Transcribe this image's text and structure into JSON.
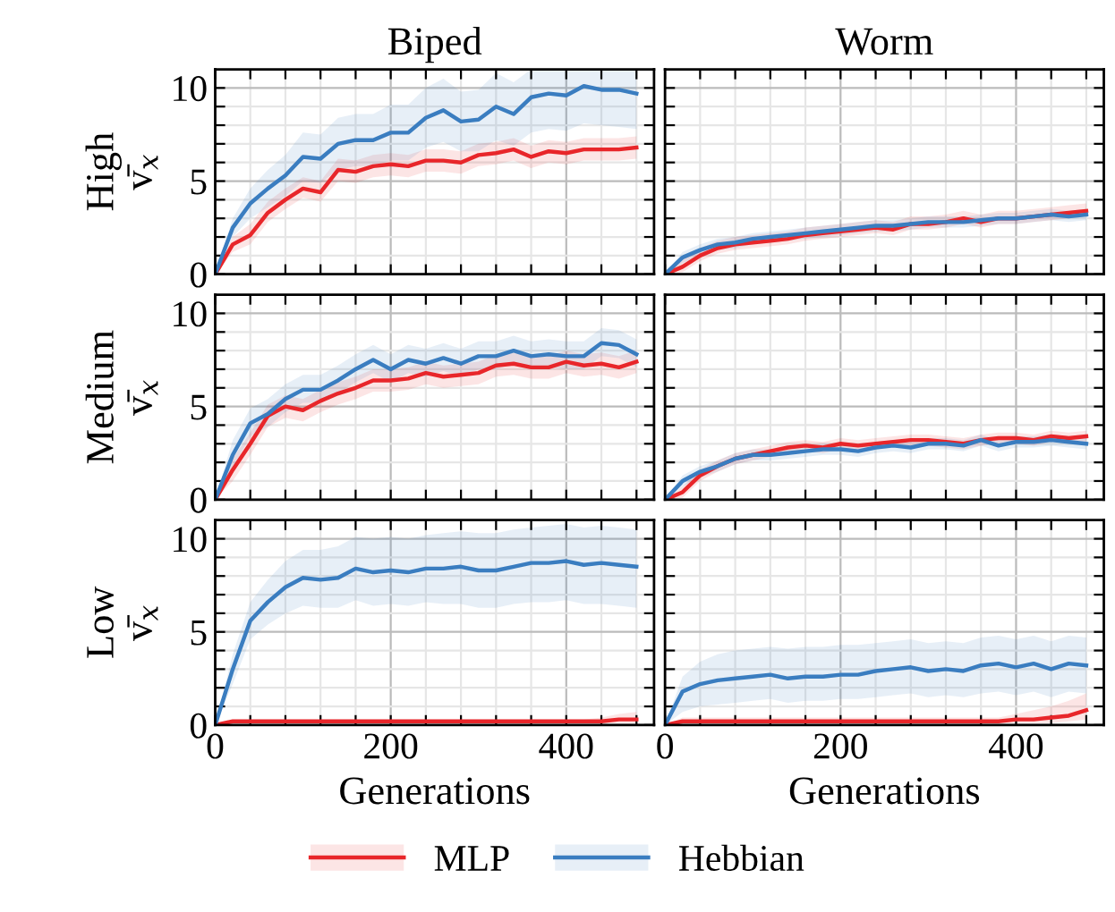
{
  "chart_data": [
    {
      "type": "line",
      "title": "Biped",
      "ylabel": "High\nv̄$_{x}$",
      "tick_labels": "y",
      "grid": true,
      "legend": "bottom",
      "xlim": [
        0,
        500
      ],
      "ylim": [
        0,
        11
      ],
      "xticks": [
        0,
        {
          "value": 40,
          "label": null
        },
        {
          "value": 80,
          "label": null
        },
        {
          "value": 120,
          "label": null
        },
        {
          "value": 160,
          "label": null
        },
        200,
        {
          "value": 240,
          "label": null
        },
        {
          "value": 280,
          "label": null
        },
        {
          "value": 320,
          "label": null
        },
        {
          "value": 360,
          "label": null
        },
        400,
        {
          "value": 440,
          "label": null
        },
        {
          "value": 480,
          "label": null
        }
      ],
      "yticks": [
        0,
        {
          "value": 1,
          "label": null
        },
        {
          "value": 2,
          "label": null
        },
        {
          "value": 3,
          "label": null
        },
        {
          "value": 4,
          "label": null
        },
        5,
        {
          "value": 6,
          "label": null
        },
        {
          "value": 7,
          "label": null
        },
        {
          "value": 8,
          "label": null
        },
        {
          "value": 9,
          "label": null
        },
        10
      ],
      "x": [
        0,
        20,
        40,
        60,
        80,
        100,
        120,
        140,
        160,
        180,
        200,
        220,
        240,
        260,
        280,
        300,
        320,
        340,
        360,
        380,
        400,
        420,
        440,
        460,
        480
      ],
      "series": [
        {
          "name": "MLP",
          "color": "#e8262a",
          "values": [
            0,
            1.6,
            2.1,
            3.3,
            4.0,
            4.6,
            4.4,
            5.6,
            5.5,
            5.8,
            5.9,
            5.8,
            6.1,
            6.1,
            6.0,
            6.4,
            6.5,
            6.7,
            6.3,
            6.6,
            6.5,
            6.7,
            6.7,
            6.7,
            6.8
          ],
          "lower": [
            0,
            1.2,
            1.6,
            2.8,
            3.5,
            4.1,
            3.9,
            5.0,
            4.9,
            5.2,
            5.3,
            5.2,
            5.5,
            5.5,
            5.4,
            5.8,
            5.9,
            6.1,
            5.7,
            6.0,
            5.9,
            6.1,
            6.1,
            6.1,
            6.2
          ],
          "upper": [
            0,
            2.0,
            2.7,
            3.9,
            4.6,
            5.2,
            5.0,
            6.2,
            6.1,
            6.4,
            6.5,
            6.4,
            6.7,
            6.7,
            6.6,
            7.0,
            7.1,
            7.3,
            6.9,
            7.2,
            7.1,
            7.3,
            7.3,
            7.3,
            7.4
          ]
        },
        {
          "name": "Hebbian",
          "color": "#3a7dc0",
          "values": [
            0,
            2.5,
            3.8,
            4.6,
            5.3,
            6.3,
            6.2,
            7.0,
            7.2,
            7.2,
            7.6,
            7.6,
            8.4,
            8.8,
            8.2,
            8.3,
            9.0,
            8.6,
            9.5,
            9.7,
            9.6,
            10.1,
            9.9,
            9.9,
            9.7
          ],
          "lower": [
            0,
            2.0,
            3.0,
            3.6,
            4.2,
            5.0,
            4.9,
            5.6,
            5.8,
            5.8,
            6.1,
            6.1,
            6.8,
            7.1,
            6.6,
            6.6,
            7.2,
            6.9,
            7.6,
            7.8,
            7.7,
            8.1,
            8.0,
            7.9,
            7.8
          ],
          "upper": [
            0,
            3.0,
            4.6,
            5.6,
            6.4,
            7.6,
            7.5,
            8.4,
            8.6,
            8.6,
            9.1,
            9.1,
            10.0,
            10.5,
            9.8,
            9.9,
            10.8,
            10.3,
            11,
            11,
            11,
            11,
            11,
            11,
            11
          ]
        }
      ]
    },
    {
      "type": "line",
      "title": "Worm",
      "tick_labels": false,
      "grid": true,
      "legend": "bottom",
      "xlim": [
        0,
        500
      ],
      "ylim": [
        0,
        11
      ],
      "xticks": [
        0,
        {
          "value": 40,
          "label": null
        },
        {
          "value": 80,
          "label": null
        },
        {
          "value": 120,
          "label": null
        },
        {
          "value": 160,
          "label": null
        },
        200,
        {
          "value": 240,
          "label": null
        },
        {
          "value": 280,
          "label": null
        },
        {
          "value": 320,
          "label": null
        },
        {
          "value": 360,
          "label": null
        },
        400,
        {
          "value": 440,
          "label": null
        },
        {
          "value": 480,
          "label": null
        }
      ],
      "yticks": [
        0,
        {
          "value": 1,
          "label": null
        },
        {
          "value": 2,
          "label": null
        },
        {
          "value": 3,
          "label": null
        },
        {
          "value": 4,
          "label": null
        },
        5,
        {
          "value": 6,
          "label": null
        },
        {
          "value": 7,
          "label": null
        },
        {
          "value": 8,
          "label": null
        },
        {
          "value": 9,
          "label": null
        },
        10
      ],
      "x": [
        0,
        20,
        40,
        60,
        80,
        100,
        120,
        140,
        160,
        180,
        200,
        220,
        240,
        260,
        280,
        300,
        320,
        340,
        360,
        380,
        400,
        420,
        440,
        460,
        480
      ],
      "series": [
        {
          "name": "MLP",
          "color": "#e8262a",
          "values": [
            0,
            0.4,
            1.0,
            1.4,
            1.6,
            1.7,
            1.8,
            1.9,
            2.1,
            2.2,
            2.3,
            2.4,
            2.5,
            2.4,
            2.7,
            2.7,
            2.8,
            3.0,
            2.8,
            3.0,
            3.0,
            3.1,
            3.2,
            3.3,
            3.4
          ],
          "lower": [
            0,
            0.1,
            0.7,
            1.1,
            1.3,
            1.4,
            1.5,
            1.6,
            1.8,
            1.9,
            2.0,
            2.1,
            2.2,
            2.1,
            2.4,
            2.4,
            2.5,
            2.7,
            2.5,
            2.7,
            2.7,
            2.8,
            2.9,
            3.0,
            3.1
          ],
          "upper": [
            0,
            0.8,
            1.4,
            1.8,
            2.0,
            2.1,
            2.2,
            2.3,
            2.5,
            2.6,
            2.7,
            2.8,
            2.9,
            2.8,
            3.1,
            3.1,
            3.2,
            3.4,
            3.2,
            3.4,
            3.4,
            3.5,
            3.6,
            3.7,
            3.8
          ]
        },
        {
          "name": "Hebbian",
          "color": "#3a7dc0",
          "values": [
            0,
            0.9,
            1.3,
            1.6,
            1.7,
            1.9,
            2.0,
            2.1,
            2.2,
            2.3,
            2.4,
            2.5,
            2.6,
            2.6,
            2.7,
            2.8,
            2.8,
            2.8,
            2.9,
            3.0,
            3.0,
            3.1,
            3.2,
            3.1,
            3.2
          ],
          "lower": [
            0,
            0.6,
            1.0,
            1.3,
            1.4,
            1.6,
            1.7,
            1.8,
            1.9,
            2.0,
            2.1,
            2.2,
            2.3,
            2.3,
            2.4,
            2.5,
            2.5,
            2.5,
            2.6,
            2.7,
            2.7,
            2.8,
            2.9,
            2.8,
            2.9
          ],
          "upper": [
            0,
            1.2,
            1.6,
            1.9,
            2.0,
            2.2,
            2.3,
            2.4,
            2.5,
            2.6,
            2.7,
            2.8,
            2.9,
            2.9,
            3.0,
            3.1,
            3.1,
            3.1,
            3.2,
            3.3,
            3.3,
            3.4,
            3.5,
            3.4,
            3.5
          ]
        }
      ]
    },
    {
      "type": "line",
      "ylabel": "Medium\nv̄$_{x}$",
      "tick_labels": "y",
      "grid": true,
      "legend": "bottom",
      "xlim": [
        0,
        500
      ],
      "ylim": [
        0,
        11
      ],
      "xticks": [
        0,
        {
          "value": 40,
          "label": null
        },
        {
          "value": 80,
          "label": null
        },
        {
          "value": 120,
          "label": null
        },
        {
          "value": 160,
          "label": null
        },
        200,
        {
          "value": 240,
          "label": null
        },
        {
          "value": 280,
          "label": null
        },
        {
          "value": 320,
          "label": null
        },
        {
          "value": 360,
          "label": null
        },
        400,
        {
          "value": 440,
          "label": null
        },
        {
          "value": 480,
          "label": null
        }
      ],
      "yticks": [
        0,
        {
          "value": 1,
          "label": null
        },
        {
          "value": 2,
          "label": null
        },
        {
          "value": 3,
          "label": null
        },
        {
          "value": 4,
          "label": null
        },
        5,
        {
          "value": 6,
          "label": null
        },
        {
          "value": 7,
          "label": null
        },
        {
          "value": 8,
          "label": null
        },
        {
          "value": 9,
          "label": null
        },
        10
      ],
      "x": [
        0,
        20,
        40,
        60,
        80,
        100,
        120,
        140,
        160,
        180,
        200,
        220,
        240,
        260,
        280,
        300,
        320,
        340,
        360,
        380,
        400,
        420,
        440,
        460,
        480
      ],
      "series": [
        {
          "name": "MLP",
          "color": "#e8262a",
          "values": [
            0,
            1.6,
            3.0,
            4.5,
            5.0,
            4.8,
            5.3,
            5.7,
            6.0,
            6.4,
            6.4,
            6.5,
            6.8,
            6.6,
            6.7,
            6.8,
            7.2,
            7.3,
            7.1,
            7.1,
            7.4,
            7.2,
            7.3,
            7.1,
            7.4
          ],
          "lower": [
            0,
            1.0,
            2.4,
            3.9,
            4.4,
            4.2,
            4.7,
            5.1,
            5.4,
            5.8,
            5.8,
            5.9,
            6.2,
            6.0,
            6.1,
            6.2,
            6.6,
            6.7,
            6.5,
            6.5,
            6.8,
            6.6,
            6.7,
            6.5,
            6.8
          ],
          "upper": [
            0,
            2.2,
            3.6,
            5.1,
            5.6,
            5.4,
            5.9,
            6.3,
            6.6,
            7.0,
            7.0,
            7.1,
            7.4,
            7.2,
            7.3,
            7.4,
            7.8,
            7.9,
            7.7,
            7.7,
            8.0,
            7.8,
            7.9,
            7.7,
            8.0
          ]
        },
        {
          "name": "Hebbian",
          "color": "#3a7dc0",
          "values": [
            0,
            2.4,
            4.1,
            4.6,
            5.4,
            5.9,
            5.9,
            6.4,
            7.0,
            7.5,
            7.0,
            7.5,
            7.3,
            7.6,
            7.3,
            7.7,
            7.7,
            8.0,
            7.7,
            7.8,
            7.7,
            7.7,
            8.4,
            8.3,
            7.8
          ],
          "lower": [
            0,
            1.7,
            3.4,
            3.9,
            4.7,
            5.2,
            5.2,
            5.7,
            6.3,
            6.8,
            6.3,
            6.8,
            6.6,
            6.9,
            6.6,
            7.0,
            7.0,
            7.3,
            7.0,
            7.1,
            7.0,
            7.0,
            7.7,
            7.6,
            7.1
          ],
          "upper": [
            0,
            3.2,
            4.9,
            5.4,
            6.2,
            6.7,
            6.7,
            7.2,
            7.8,
            8.3,
            7.8,
            8.3,
            8.1,
            8.4,
            8.1,
            8.5,
            8.5,
            8.8,
            8.5,
            8.6,
            8.5,
            8.5,
            9.2,
            9.1,
            8.6
          ]
        }
      ]
    },
    {
      "type": "line",
      "tick_labels": false,
      "grid": true,
      "legend": "bottom",
      "xlim": [
        0,
        500
      ],
      "ylim": [
        0,
        11
      ],
      "xticks": [
        0,
        {
          "value": 40,
          "label": null
        },
        {
          "value": 80,
          "label": null
        },
        {
          "value": 120,
          "label": null
        },
        {
          "value": 160,
          "label": null
        },
        200,
        {
          "value": 240,
          "label": null
        },
        {
          "value": 280,
          "label": null
        },
        {
          "value": 320,
          "label": null
        },
        {
          "value": 360,
          "label": null
        },
        400,
        {
          "value": 440,
          "label": null
        },
        {
          "value": 480,
          "label": null
        }
      ],
      "yticks": [
        0,
        {
          "value": 1,
          "label": null
        },
        {
          "value": 2,
          "label": null
        },
        {
          "value": 3,
          "label": null
        },
        {
          "value": 4,
          "label": null
        },
        5,
        {
          "value": 6,
          "label": null
        },
        {
          "value": 7,
          "label": null
        },
        {
          "value": 8,
          "label": null
        },
        {
          "value": 9,
          "label": null
        },
        10
      ],
      "x": [
        0,
        20,
        40,
        60,
        80,
        100,
        120,
        140,
        160,
        180,
        200,
        220,
        240,
        260,
        280,
        300,
        320,
        340,
        360,
        380,
        400,
        420,
        440,
        460,
        480
      ],
      "series": [
        {
          "name": "MLP",
          "color": "#e8262a",
          "values": [
            0,
            0.4,
            1.3,
            1.8,
            2.2,
            2.4,
            2.6,
            2.8,
            2.9,
            2.8,
            3.0,
            2.9,
            3.0,
            3.1,
            3.2,
            3.2,
            3.1,
            3.0,
            3.2,
            3.3,
            3.3,
            3.2,
            3.4,
            3.3,
            3.4
          ],
          "lower": [
            0,
            0.1,
            1.0,
            1.5,
            1.9,
            2.1,
            2.3,
            2.5,
            2.6,
            2.5,
            2.7,
            2.6,
            2.7,
            2.8,
            2.9,
            2.9,
            2.8,
            2.7,
            2.9,
            3.0,
            3.0,
            2.9,
            3.1,
            3.0,
            3.1
          ],
          "upper": [
            0,
            0.7,
            1.6,
            2.1,
            2.5,
            2.7,
            2.9,
            3.1,
            3.2,
            3.1,
            3.3,
            3.2,
            3.3,
            3.4,
            3.5,
            3.5,
            3.4,
            3.3,
            3.5,
            3.6,
            3.6,
            3.5,
            3.7,
            3.6,
            3.7
          ]
        },
        {
          "name": "Hebbian",
          "color": "#3a7dc0",
          "values": [
            0,
            1.0,
            1.5,
            1.8,
            2.2,
            2.4,
            2.4,
            2.5,
            2.6,
            2.7,
            2.7,
            2.6,
            2.8,
            2.9,
            2.8,
            3.0,
            3.0,
            2.9,
            3.2,
            2.9,
            3.1,
            3.1,
            3.2,
            3.1,
            3.0
          ],
          "lower": [
            0,
            0.7,
            1.2,
            1.5,
            1.9,
            2.1,
            2.1,
            2.2,
            2.3,
            2.4,
            2.4,
            2.3,
            2.5,
            2.6,
            2.5,
            2.7,
            2.7,
            2.6,
            2.9,
            2.6,
            2.8,
            2.8,
            2.9,
            2.8,
            2.7
          ],
          "upper": [
            0,
            1.3,
            1.8,
            2.1,
            2.5,
            2.7,
            2.7,
            2.8,
            2.9,
            3.0,
            3.0,
            2.9,
            3.1,
            3.2,
            3.1,
            3.3,
            3.3,
            3.2,
            3.5,
            3.2,
            3.4,
            3.4,
            3.5,
            3.4,
            3.3
          ]
        }
      ]
    },
    {
      "type": "line",
      "ylabel": "Low\nv̄$_{x}$",
      "xlabel": "Generations",
      "grid": true,
      "legend": "bottom",
      "xlim": [
        0,
        500
      ],
      "ylim": [
        0,
        11
      ],
      "xticks": [
        0,
        {
          "value": 40,
          "label": null
        },
        {
          "value": 80,
          "label": null
        },
        {
          "value": 120,
          "label": null
        },
        {
          "value": 160,
          "label": null
        },
        200,
        {
          "value": 240,
          "label": null
        },
        {
          "value": 280,
          "label": null
        },
        {
          "value": 320,
          "label": null
        },
        {
          "value": 360,
          "label": null
        },
        400,
        {
          "value": 440,
          "label": null
        },
        {
          "value": 480,
          "label": null
        }
      ],
      "yticks": [
        0,
        {
          "value": 1,
          "label": null
        },
        {
          "value": 2,
          "label": null
        },
        {
          "value": 3,
          "label": null
        },
        {
          "value": 4,
          "label": null
        },
        5,
        {
          "value": 6,
          "label": null
        },
        {
          "value": 7,
          "label": null
        },
        {
          "value": 8,
          "label": null
        },
        {
          "value": 9,
          "label": null
        },
        10
      ],
      "x": [
        0,
        20,
        40,
        60,
        80,
        100,
        120,
        140,
        160,
        180,
        200,
        220,
        240,
        260,
        280,
        300,
        320,
        340,
        360,
        380,
        400,
        420,
        440,
        460,
        480
      ],
      "series": [
        {
          "name": "MLP",
          "color": "#e8262a",
          "values": [
            0,
            0.2,
            0.2,
            0.2,
            0.2,
            0.2,
            0.2,
            0.2,
            0.2,
            0.2,
            0.2,
            0.2,
            0.2,
            0.2,
            0.2,
            0.2,
            0.2,
            0.2,
            0.2,
            0.2,
            0.2,
            0.2,
            0.2,
            0.3,
            0.3
          ],
          "lower": [
            0,
            0.1,
            0.1,
            0.1,
            0.1,
            0.1,
            0.1,
            0.1,
            0.1,
            0.1,
            0.1,
            0.1,
            0.1,
            0.1,
            0.1,
            0.1,
            0.1,
            0.1,
            0.1,
            0.1,
            0.1,
            0.1,
            0.1,
            0.1,
            0.1
          ],
          "upper": [
            0,
            0.3,
            0.3,
            0.3,
            0.3,
            0.3,
            0.3,
            0.3,
            0.3,
            0.3,
            0.3,
            0.3,
            0.3,
            0.3,
            0.3,
            0.3,
            0.3,
            0.3,
            0.3,
            0.3,
            0.3,
            0.3,
            0.4,
            0.6,
            0.7
          ]
        },
        {
          "name": "Hebbian",
          "color": "#3a7dc0",
          "values": [
            0,
            3.0,
            5.6,
            6.6,
            7.4,
            7.9,
            7.8,
            7.9,
            8.4,
            8.2,
            8.3,
            8.2,
            8.4,
            8.4,
            8.5,
            8.3,
            8.3,
            8.5,
            8.7,
            8.7,
            8.8,
            8.6,
            8.7,
            8.6,
            8.5
          ],
          "lower": [
            0,
            2.2,
            4.6,
            5.4,
            6.0,
            6.4,
            6.3,
            6.3,
            6.7,
            6.4,
            6.5,
            6.4,
            6.6,
            6.5,
            6.5,
            6.3,
            6.3,
            6.5,
            6.6,
            6.6,
            6.7,
            6.5,
            6.5,
            6.4,
            6.3
          ],
          "upper": [
            0,
            3.8,
            6.6,
            7.8,
            8.8,
            9.4,
            9.4,
            9.6,
            10.1,
            10.0,
            10.1,
            10.0,
            10.2,
            10.3,
            10.4,
            10.3,
            10.3,
            10.5,
            10.6,
            10.7,
            10.8,
            10.6,
            10.7,
            10.6,
            10.5
          ]
        }
      ]
    },
    {
      "type": "line",
      "xlabel": "Generations",
      "tick_labels": "x",
      "grid": true,
      "legend": "bottom",
      "xlim": [
        0,
        500
      ],
      "ylim": [
        0,
        11
      ],
      "xticks": [
        0,
        {
          "value": 40,
          "label": null
        },
        {
          "value": 80,
          "label": null
        },
        {
          "value": 120,
          "label": null
        },
        {
          "value": 160,
          "label": null
        },
        200,
        {
          "value": 240,
          "label": null
        },
        {
          "value": 280,
          "label": null
        },
        {
          "value": 320,
          "label": null
        },
        {
          "value": 360,
          "label": null
        },
        400,
        {
          "value": 440,
          "label": null
        },
        {
          "value": 480,
          "label": null
        }
      ],
      "yticks": [
        0,
        {
          "value": 1,
          "label": null
        },
        {
          "value": 2,
          "label": null
        },
        {
          "value": 3,
          "label": null
        },
        {
          "value": 4,
          "label": null
        },
        5,
        {
          "value": 6,
          "label": null
        },
        {
          "value": 7,
          "label": null
        },
        {
          "value": 8,
          "label": null
        },
        {
          "value": 9,
          "label": null
        },
        10
      ],
      "x": [
        0,
        20,
        40,
        60,
        80,
        100,
        120,
        140,
        160,
        180,
        200,
        220,
        240,
        260,
        280,
        300,
        320,
        340,
        360,
        380,
        400,
        420,
        440,
        460,
        480
      ],
      "series": [
        {
          "name": "MLP",
          "color": "#e8262a",
          "values": [
            0,
            0.2,
            0.2,
            0.2,
            0.2,
            0.2,
            0.2,
            0.2,
            0.2,
            0.2,
            0.2,
            0.2,
            0.2,
            0.2,
            0.2,
            0.2,
            0.2,
            0.2,
            0.2,
            0.2,
            0.3,
            0.3,
            0.4,
            0.5,
            0.8
          ],
          "lower": [
            0,
            0.1,
            0.1,
            0.1,
            0.1,
            0.1,
            0.1,
            0.1,
            0.1,
            0.1,
            0.1,
            0.1,
            0.1,
            0.1,
            0.1,
            0.1,
            0.1,
            0.1,
            0.1,
            0.1,
            0.1,
            0.1,
            0.1,
            0.2,
            0.3
          ],
          "upper": [
            0,
            0.4,
            0.4,
            0.4,
            0.4,
            0.4,
            0.4,
            0.4,
            0.4,
            0.4,
            0.4,
            0.4,
            0.4,
            0.4,
            0.4,
            0.4,
            0.4,
            0.4,
            0.4,
            0.4,
            0.6,
            0.8,
            1.0,
            1.3,
            1.7
          ]
        },
        {
          "name": "Hebbian",
          "color": "#3a7dc0",
          "values": [
            0,
            1.8,
            2.2,
            2.4,
            2.5,
            2.6,
            2.7,
            2.5,
            2.6,
            2.6,
            2.7,
            2.7,
            2.9,
            3.0,
            3.1,
            2.9,
            3.0,
            2.9,
            3.2,
            3.3,
            3.1,
            3.3,
            3.0,
            3.3,
            3.2
          ],
          "lower": [
            0,
            0.7,
            1.0,
            1.1,
            1.2,
            1.3,
            1.4,
            1.2,
            1.3,
            1.3,
            1.4,
            1.4,
            1.5,
            1.6,
            1.7,
            1.5,
            1.6,
            1.5,
            1.7,
            1.8,
            1.6,
            1.8,
            1.5,
            1.8,
            1.7
          ],
          "upper": [
            0,
            2.6,
            3.4,
            3.8,
            4.0,
            4.1,
            4.2,
            4.1,
            4.2,
            4.2,
            4.3,
            4.3,
            4.4,
            4.5,
            4.6,
            4.4,
            4.5,
            4.4,
            4.7,
            4.8,
            4.6,
            4.8,
            4.5,
            4.8,
            4.7
          ]
        }
      ]
    }
  ]
}
